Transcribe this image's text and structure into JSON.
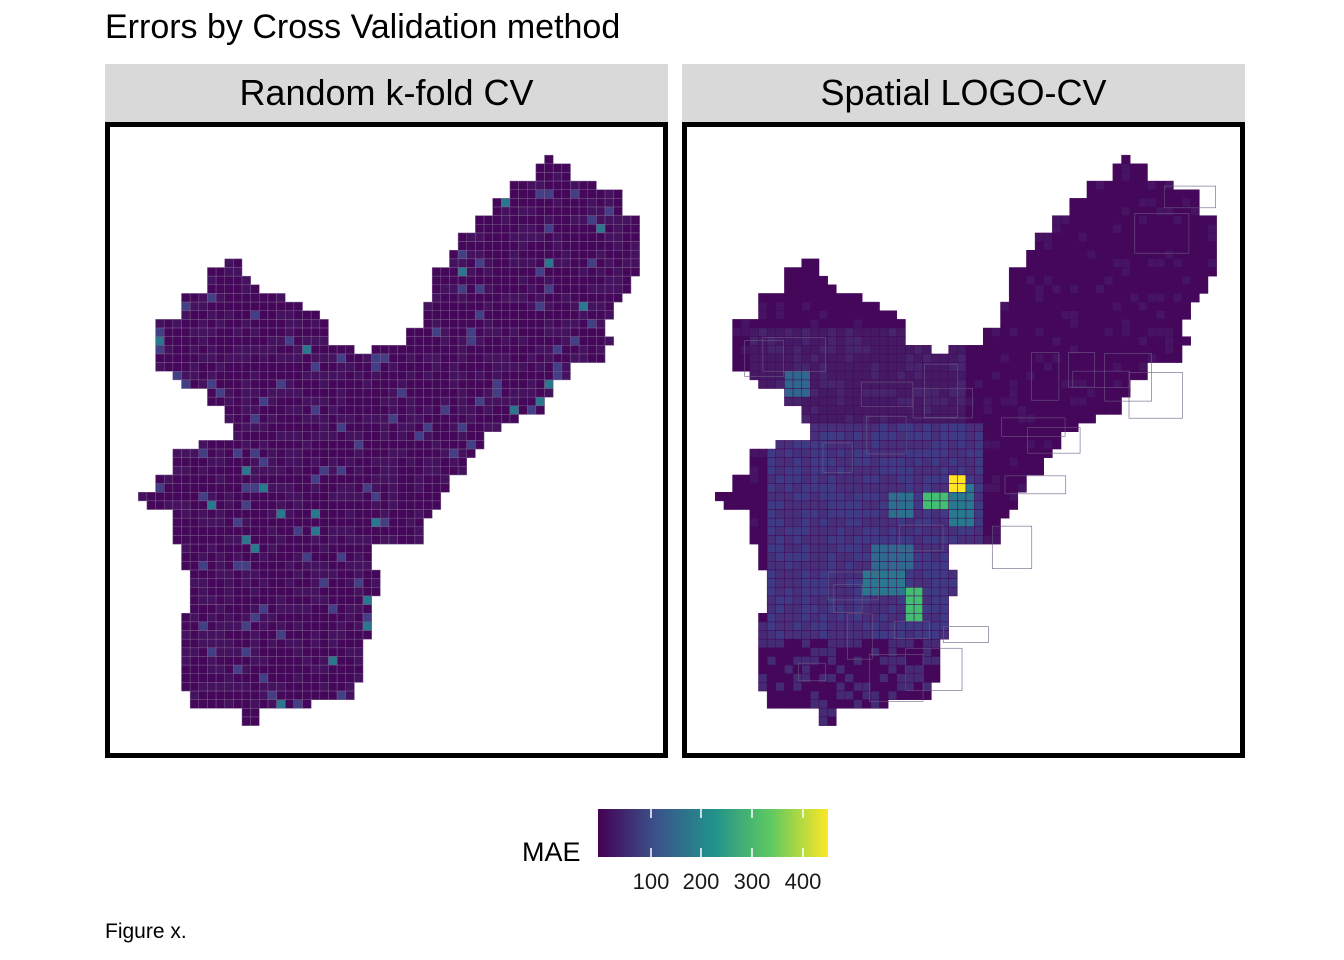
{
  "figure_title": "Errors by Cross Validation method",
  "caption": "Figure x.",
  "panels": [
    {
      "label": "Random k-fold CV"
    },
    {
      "label": "Spatial LOGO-CV"
    }
  ],
  "legend": {
    "title": "MAE",
    "ticks": [
      "100",
      "200",
      "300",
      "400"
    ],
    "palette": [
      "#440154",
      "#3b528b",
      "#21918c",
      "#5ec962",
      "#fde725"
    ],
    "range": [
      30,
      450
    ]
  },
  "colors": {
    "low": "#44075a",
    "mid_low": "#433f86",
    "mid": "#2a788e",
    "teal": "#22a884",
    "green": "#43bf71",
    "high": "#fde725",
    "strip_bg": "#d9d9d9",
    "cell_border": "#7a5d8a"
  }
}
